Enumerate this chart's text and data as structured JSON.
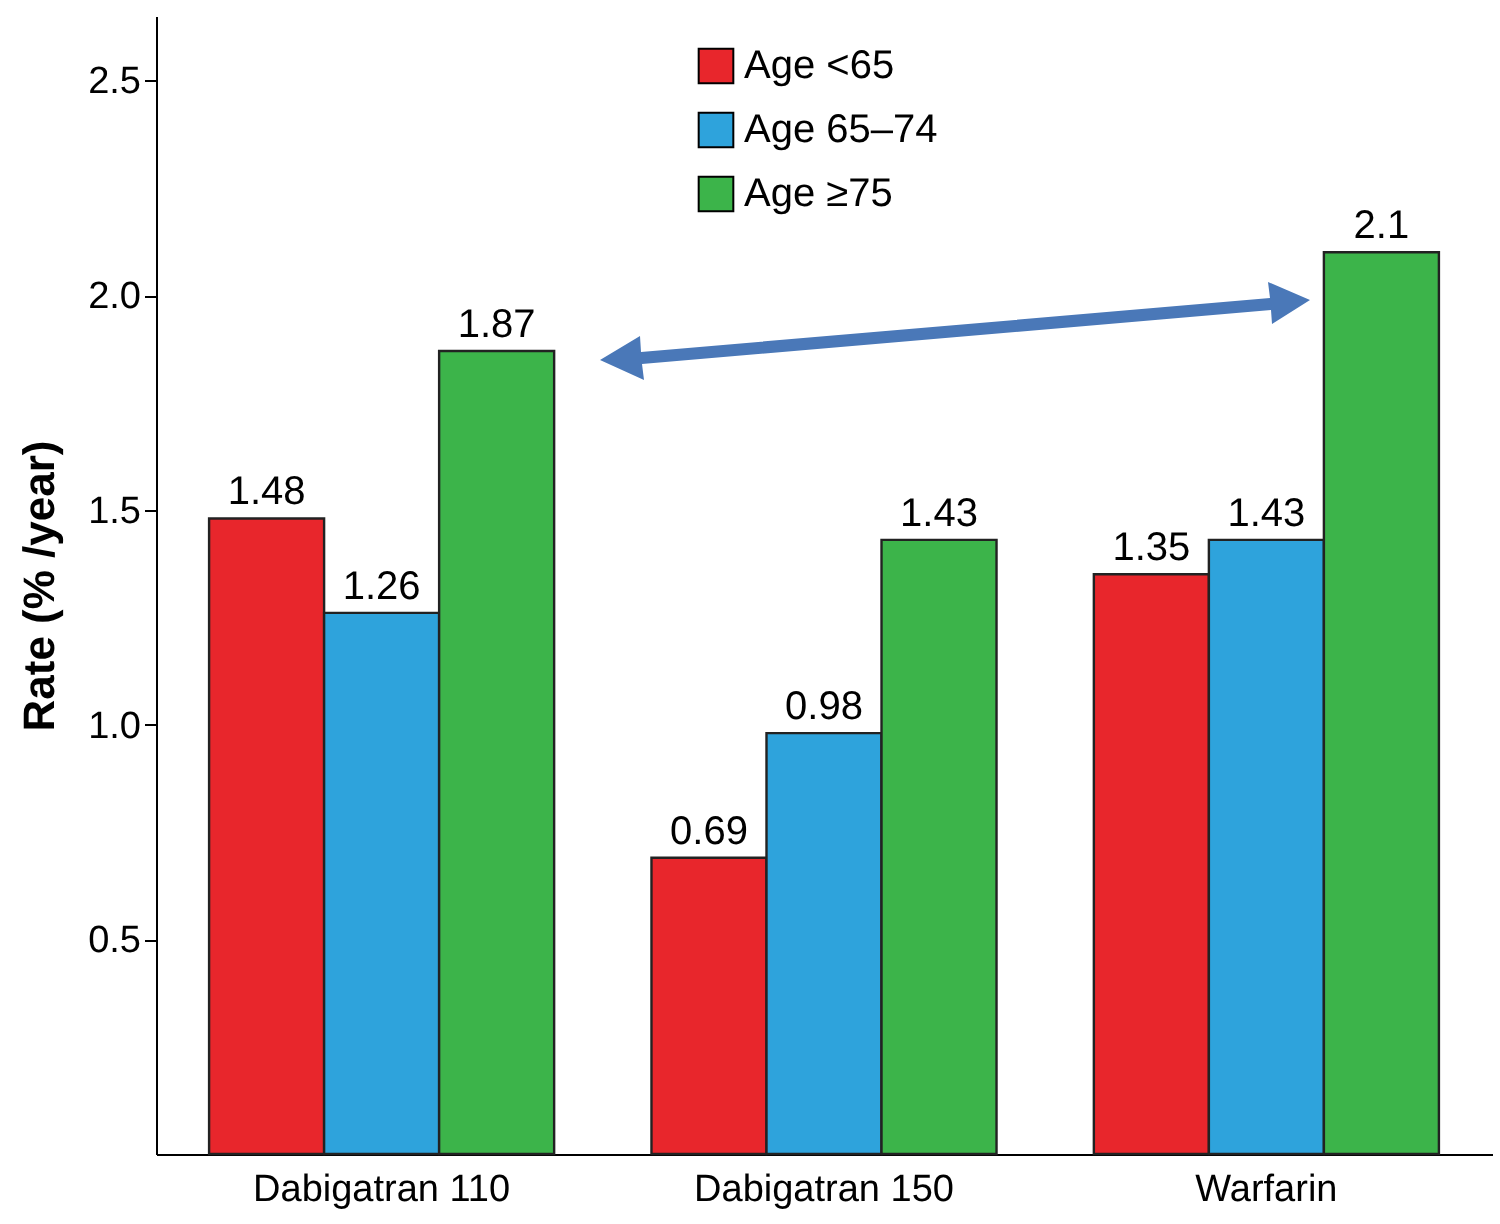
{
  "chart_data": {
    "type": "bar",
    "ylabel": "Rate (% /year)",
    "categories": [
      "Dabigatran 110",
      "Dabigatran 150",
      "Warfarin"
    ],
    "series": [
      {
        "name": "Age <65",
        "color": "#e8262c",
        "values": [
          1.48,
          0.69,
          1.35
        ]
      },
      {
        "name": "Age 65–74",
        "color": "#2ea3dc",
        "values": [
          1.26,
          0.98,
          1.43
        ]
      },
      {
        "name": "Age ≥75",
        "color": "#3cb44a",
        "values": [
          1.87,
          1.43,
          2.1
        ]
      }
    ],
    "ylim": [
      0,
      2.65
    ],
    "yticks": [
      0.5,
      {
        "value": 1,
        "label": "1.0"
      },
      1.5,
      {
        "value": 2,
        "label": "2.0"
      },
      2.5
    ],
    "data_labels": true,
    "legend": "top",
    "grid": false
  }
}
